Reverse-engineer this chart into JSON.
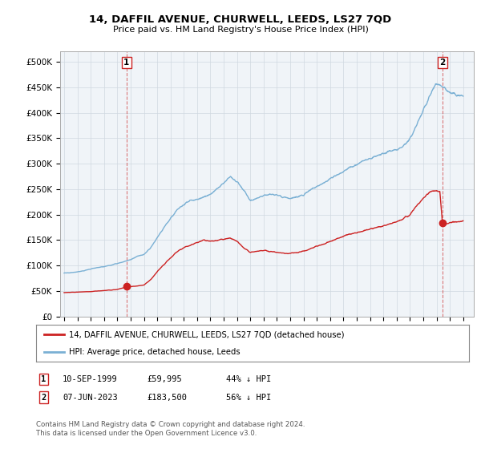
{
  "title": "14, DAFFIL AVENUE, CHURWELL, LEEDS, LS27 7QD",
  "subtitle": "Price paid vs. HM Land Registry's House Price Index (HPI)",
  "ylim": [
    0,
    520000
  ],
  "yticks": [
    0,
    50000,
    100000,
    150000,
    200000,
    250000,
    300000,
    350000,
    400000,
    450000,
    500000
  ],
  "ytick_labels": [
    "£0",
    "£50K",
    "£100K",
    "£150K",
    "£200K",
    "£250K",
    "£300K",
    "£350K",
    "£400K",
    "£450K",
    "£500K"
  ],
  "hpi_color": "#7ab0d4",
  "price_color": "#cc2222",
  "sale1_date": 1999.69,
  "sale1_price": 59995,
  "sale2_date": 2023.44,
  "sale2_price": 183500,
  "legend_line1": "14, DAFFIL AVENUE, CHURWELL, LEEDS, LS27 7QD (detached house)",
  "legend_line2": "HPI: Average price, detached house, Leeds",
  "footer": "Contains HM Land Registry data © Crown copyright and database right 2024.\nThis data is licensed under the Open Government Licence v3.0.",
  "bg_color": "#f0f4f8",
  "grid_color": "#d0d8e0",
  "hpi_data": {
    "1995.0": 85000,
    "1995.5": 86000,
    "1996.0": 88000,
    "1996.5": 90000,
    "1997.0": 93000,
    "1997.5": 96000,
    "1998.0": 98000,
    "1998.5": 101000,
    "1999.0": 104000,
    "1999.5": 108000,
    "2000.0": 112000,
    "2000.5": 118000,
    "2001.0": 122000,
    "2001.5": 135000,
    "2002.0": 155000,
    "2002.5": 175000,
    "2003.0": 192000,
    "2003.5": 210000,
    "2004.0": 220000,
    "2004.5": 228000,
    "2005.0": 230000,
    "2005.5": 235000,
    "2006.0": 240000,
    "2006.5": 252000,
    "2007.0": 262000,
    "2007.5": 275000,
    "2008.0": 265000,
    "2008.5": 248000,
    "2009.0": 228000,
    "2009.5": 232000,
    "2010.0": 238000,
    "2010.5": 240000,
    "2011.0": 238000,
    "2011.5": 235000,
    "2012.0": 232000,
    "2012.5": 235000,
    "2013.0": 238000,
    "2013.5": 248000,
    "2014.0": 255000,
    "2014.5": 262000,
    "2015.0": 270000,
    "2015.5": 278000,
    "2016.0": 285000,
    "2016.5": 292000,
    "2017.0": 298000,
    "2017.5": 305000,
    "2018.0": 310000,
    "2018.5": 315000,
    "2019.0": 320000,
    "2019.5": 325000,
    "2020.0": 328000,
    "2020.5": 335000,
    "2021.0": 348000,
    "2021.5": 375000,
    "2022.0": 405000,
    "2022.5": 435000,
    "2023.0": 458000,
    "2023.5": 450000,
    "2024.0": 440000,
    "2024.5": 435000,
    "2025.0": 432000
  },
  "price_data": {
    "1995.0": 47000,
    "1995.5": 47500,
    "1996.0": 48000,
    "1996.5": 48500,
    "1997.0": 49000,
    "1997.5": 50000,
    "1998.0": 51000,
    "1998.5": 52000,
    "1999.0": 53000,
    "1999.5": 57000,
    "1999.69": 59995,
    "2000.0": 59000,
    "2000.5": 60000,
    "2001.0": 62000,
    "2001.5": 72000,
    "2002.0": 88000,
    "2002.5": 102000,
    "2003.0": 115000,
    "2003.5": 128000,
    "2004.0": 135000,
    "2004.5": 140000,
    "2005.0": 145000,
    "2005.5": 150000,
    "2006.0": 148000,
    "2006.5": 150000,
    "2007.0": 152000,
    "2007.5": 154000,
    "2008.0": 148000,
    "2008.5": 135000,
    "2009.0": 126000,
    "2009.5": 128000,
    "2010.0": 130000,
    "2010.5": 128000,
    "2011.0": 126000,
    "2011.5": 124000,
    "2012.0": 124000,
    "2012.5": 126000,
    "2013.0": 128000,
    "2013.5": 133000,
    "2014.0": 138000,
    "2014.5": 142000,
    "2015.0": 148000,
    "2015.5": 152000,
    "2016.0": 158000,
    "2016.5": 162000,
    "2017.0": 165000,
    "2017.5": 168000,
    "2018.0": 172000,
    "2018.5": 175000,
    "2019.0": 178000,
    "2019.5": 182000,
    "2020.0": 186000,
    "2020.5": 192000,
    "2021.0": 200000,
    "2021.5": 218000,
    "2022.0": 232000,
    "2022.5": 245000,
    "2023.0": 248000,
    "2023.25": 245000,
    "2023.44": 183500,
    "2023.75": 182000,
    "2024.0": 185000,
    "2024.5": 186000,
    "2025.0": 187000
  }
}
